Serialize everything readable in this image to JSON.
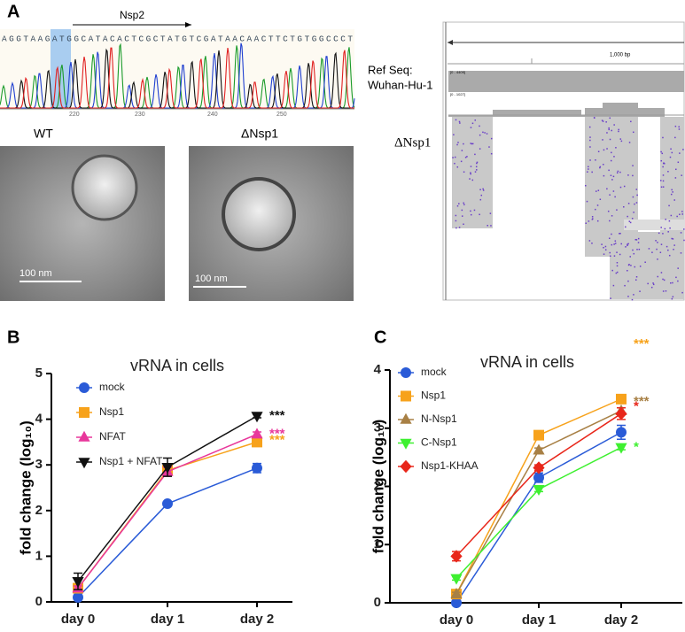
{
  "panel_labels": [
    "A",
    "B",
    "C"
  ],
  "panel_a": {
    "sequence": "AGGTAAGATGGCATACACTCGCTATGTCGATAACAACTTCTGTGGCCCT",
    "gene_label": "Nsp2",
    "positions": [
      220,
      230,
      240,
      250
    ],
    "micrographs": [
      {
        "label": "WT",
        "scale": "100 nm"
      },
      {
        "label": "ΔNsp1",
        "scale": "100 nm"
      }
    ],
    "igv": {
      "scale": "1,000 bp",
      "ref_label": "Ref Seq:",
      "ref_name": "Wuhan-Hu-1",
      "track_label": "ΔNsp1",
      "range1": "[0 - 4409]",
      "range2": "[0 - 1027]"
    }
  },
  "chart_data": [
    {
      "type": "line",
      "title": "vRNA in cells",
      "ylabel": "fold change (log₁₀)",
      "categories": [
        "day 0",
        "day 1",
        "day 2"
      ],
      "ylim": [
        0,
        5
      ],
      "yticks": [
        0,
        1,
        2,
        3,
        4,
        5
      ],
      "series": [
        {
          "name": "mock",
          "color": "#2a5bd7",
          "marker": "circle",
          "values": [
            0.1,
            2.15,
            2.93
          ],
          "errors": [
            0.05,
            0.03,
            0.1
          ]
        },
        {
          "name": "Nsp1",
          "color": "#f7a21b",
          "marker": "square",
          "values": [
            0.3,
            2.88,
            3.5
          ],
          "errors": [
            0.05,
            0.05,
            0.05
          ],
          "annotation": "***"
        },
        {
          "name": "NFAT",
          "color": "#e8379b",
          "marker": "triangle",
          "values": [
            0.3,
            2.85,
            3.67
          ],
          "errors": [
            0.05,
            0.1,
            0.05
          ],
          "annotation": "***"
        },
        {
          "name": "Nsp1 + NFAT",
          "color": "#111111",
          "marker": "triangle-down",
          "values": [
            0.45,
            2.95,
            4.07
          ],
          "errors": [
            0.18,
            0.2,
            0.04
          ],
          "annotation": "***"
        }
      ]
    },
    {
      "type": "line",
      "title": "vRNA in cells",
      "ylabel": "fold change (log₁₀)",
      "categories": [
        "day 0",
        "day 1",
        "day 2"
      ],
      "ylim": [
        0,
        4
      ],
      "yticks": [
        0,
        1,
        2,
        3,
        4
      ],
      "series": [
        {
          "name": "mock",
          "color": "#2a5bd7",
          "marker": "circle",
          "values": [
            0,
            2.15,
            2.93
          ],
          "errors": [
            0,
            0.08,
            0.12
          ]
        },
        {
          "name": "Nsp1",
          "color": "#f7a21b",
          "marker": "square",
          "values": [
            0.15,
            2.88,
            3.5
          ],
          "errors": [
            0.03,
            0.04,
            0.06
          ],
          "annotation": "***"
        },
        {
          "name": "N-Nsp1",
          "color": "#a88045",
          "marker": "triangle",
          "values": [
            0.15,
            2.62,
            3.3
          ],
          "errors": [
            0.03,
            0.04,
            0.05
          ],
          "annotation": "***"
        },
        {
          "name": "C-Nsp1",
          "color": "#3ef030",
          "marker": "triangle-down",
          "values": [
            0.42,
            1.95,
            2.67
          ],
          "errors": [
            0.03,
            0.04,
            0.04
          ],
          "annotation": "*"
        },
        {
          "name": "Nsp1-KHAA",
          "color": "#e8261a",
          "marker": "diamond",
          "values": [
            0.8,
            2.32,
            3.25
          ],
          "errors": [
            0.08,
            0.05,
            0.1
          ],
          "annotation": "*"
        }
      ]
    }
  ]
}
